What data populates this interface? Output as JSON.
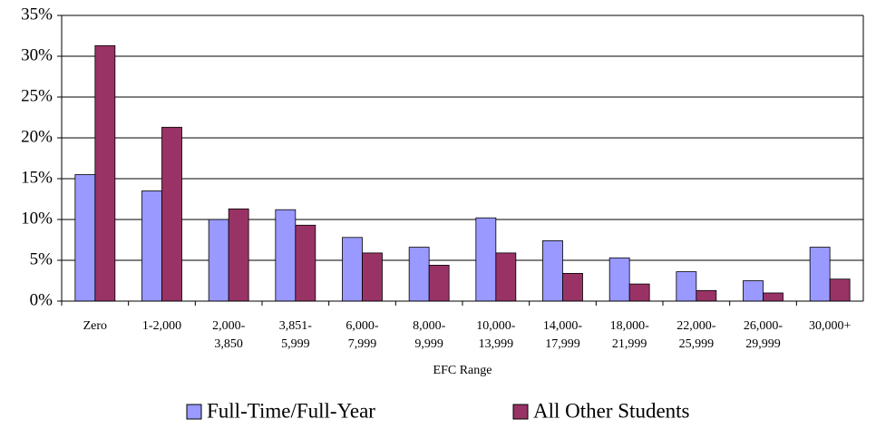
{
  "chart_data": {
    "type": "bar",
    "x_label": "EFC Range",
    "categories": [
      "Zero",
      "1-2,000",
      "2,000-\n3,850",
      "3,851-\n5,999",
      "6,000-\n7,999",
      "8,000-\n9,999",
      "10,000-\n13,999",
      "14,000-\n17,999",
      "18,000-\n21,999",
      "22,000-\n25,999",
      "26,000-\n29,999",
      "30,000+"
    ],
    "series": [
      {
        "name": "Full-Time/Full-Year",
        "color": "#9999ff",
        "values": [
          15.5,
          13.5,
          10.0,
          11.2,
          7.8,
          6.6,
          10.2,
          7.4,
          5.3,
          3.6,
          2.5,
          6.6
        ]
      },
      {
        "name": "All Other Students",
        "color": "#993366",
        "values": [
          31.3,
          21.3,
          11.3,
          9.3,
          5.9,
          4.4,
          5.9,
          3.4,
          2.1,
          1.3,
          1.0,
          2.7
        ]
      }
    ],
    "ylim": [
      0,
      35
    ],
    "yticks": [
      {
        "value": 0,
        "label": "0%"
      },
      {
        "value": 5,
        "label": "5%"
      },
      {
        "value": 10,
        "label": "10%"
      },
      {
        "value": 15,
        "label": "15%"
      },
      {
        "value": 20,
        "label": "20%"
      },
      {
        "value": 25,
        "label": "25%"
      },
      {
        "value": 30,
        "label": "30%"
      },
      {
        "value": 35,
        "label": "35%"
      }
    ],
    "grid": true,
    "legend": "bottom"
  }
}
